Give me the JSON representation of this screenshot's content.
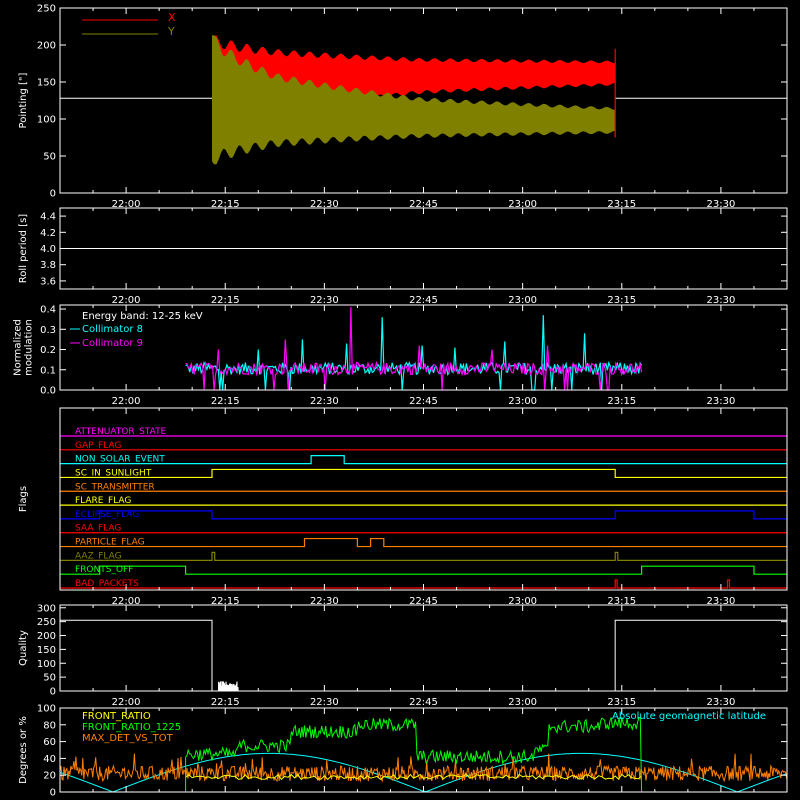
{
  "time_axis": {
    "ticks": [
      "22:00",
      "22:15",
      "22:30",
      "22:45",
      "23:00",
      "23:15",
      "23:30"
    ],
    "start_minutes": 1310,
    "end_minutes": 1420
  },
  "colors": {
    "x": "#ff0000",
    "y": "#808000",
    "white": "#ffffff",
    "cyan": "#00ffff",
    "magenta": "#ff00ff",
    "red": "#ff0000",
    "orange": "#ff8000",
    "yellow": "#ffff00",
    "blue": "#0000ff",
    "green": "#00ff00",
    "olive": "#808000",
    "purple": "#c000c0"
  },
  "chart_data": [
    {
      "id": "pointing",
      "type": "line",
      "ylabel": "Pointing [\"]",
      "ylim": [
        0,
        250
      ],
      "yticks": [
        "0",
        "50",
        "100",
        "150",
        "200",
        "250"
      ],
      "legend": [
        "X",
        "Y"
      ],
      "baseline_value": 128,
      "data_start": "22:13",
      "data_end": "23:14",
      "series": [
        {
          "name": "X",
          "center": [
            128,
            150,
            158,
            162
          ],
          "amplitude": [
            80,
            40,
            22,
            15
          ]
        },
        {
          "name": "Y",
          "center": [
            128,
            112,
            102,
            98
          ],
          "amplitude": [
            85,
            45,
            25,
            16
          ]
        }
      ]
    },
    {
      "id": "roll",
      "type": "line",
      "ylabel": "Roll period [s]",
      "ylim": [
        3.5,
        4.5
      ],
      "yticks": [
        "3.6",
        "3.8",
        "4.0",
        "4.2",
        "4.4"
      ],
      "value": 4.0
    },
    {
      "id": "modulation",
      "type": "line",
      "ylabel_lines": [
        "Normalized",
        "modulation"
      ],
      "ylim": [
        0,
        0.42
      ],
      "yticks": [
        "0.0",
        "0.1",
        "0.2",
        "0.3",
        "0.4"
      ],
      "annotation": "Energy band: 12-25 keV",
      "series": [
        {
          "name": "Collimator 8",
          "typical": 0.1,
          "spikes": [
            0.28,
            0.2,
            0.25,
            0.23,
            0.36,
            0.22,
            0.21,
            0.24,
            0.37,
            0.28
          ]
        },
        {
          "name": "Collimator 9",
          "typical": 0.1,
          "spikes": [
            0.2,
            0.25,
            0.41,
            0.22,
            0.2,
            0.22
          ]
        }
      ],
      "data_start": "22:09",
      "data_end": "23:18"
    },
    {
      "id": "flags",
      "type": "line",
      "ylabel": "Flags",
      "flags": [
        {
          "name": "ATTENUATOR_STATE",
          "color": "#ff00ff",
          "segments": []
        },
        {
          "name": "GAP_FLAG",
          "color": "#ff0000",
          "segments": []
        },
        {
          "name": "NON_SOLAR_EVENT",
          "color": "#00ffff",
          "segments": [
            [
              "22:28",
              "22:33"
            ]
          ]
        },
        {
          "name": "SC_IN_SUNLIGHT",
          "color": "#ffff00",
          "segments": [
            [
              "22:13",
              "23:14"
            ]
          ]
        },
        {
          "name": "SC_TRANSMITTER",
          "color": "#ff8000",
          "segments": []
        },
        {
          "name": "FLARE_FLAG",
          "color": "#ffff00",
          "segments": []
        },
        {
          "name": "ECLIPSE_FLAG",
          "color": "#0000ff",
          "segments": [
            [
              "21:56",
              "22:13"
            ],
            [
              "23:14",
              "23:35"
            ]
          ]
        },
        {
          "name": "SAA_FLAG",
          "color": "#ff0000",
          "segments": []
        },
        {
          "name": "PARTICLE_FLAG",
          "color": "#ff8000",
          "segments": [
            [
              "22:27",
              "22:35"
            ],
            [
              "22:37",
              "22:39"
            ]
          ]
        },
        {
          "name": "AAZ_FLAG",
          "color": "#808000",
          "segments": [
            [
              "22:13",
              "22:13.4"
            ],
            [
              "23:14",
              "23:14.4"
            ]
          ]
        },
        {
          "name": "FRONTS_OFF",
          "color": "#00ff00",
          "segments": [
            [
              "21:56",
              "22:09"
            ],
            [
              "23:18",
              "23:35"
            ]
          ]
        },
        {
          "name": "BAD_PACKETS",
          "color": "#ff0000",
          "segments": [
            [
              "23:14",
              "23:14.3"
            ],
            [
              "23:31",
              "23:31.3"
            ]
          ]
        }
      ]
    },
    {
      "id": "quality",
      "type": "line",
      "ylabel": "Quality",
      "ylim": [
        0,
        310
      ],
      "yticks": [
        "0",
        "50",
        "100",
        "150",
        "200",
        "250",
        "300"
      ],
      "high_value": 255,
      "segments_high": [
        [
          "21:56",
          "22:13"
        ],
        [
          "23:14",
          "23:35"
        ]
      ],
      "burst": [
        "22:14",
        "22:17"
      ]
    },
    {
      "id": "ratios",
      "type": "line",
      "ylabel": "Degrees or %",
      "ylim": [
        0,
        100
      ],
      "yticks": [
        "0",
        "20",
        "40",
        "60",
        "80",
        "100"
      ],
      "series": [
        {
          "name": "FRONT_RATIO",
          "color": "#ffff00"
        },
        {
          "name": "FRONT_RATIO_1225",
          "color": "#00ff00",
          "levels": [
            [
              "22:09",
              "22:17",
              45
            ],
            [
              "22:17",
              "22:25",
              55
            ],
            [
              "22:25",
              "22:35",
              72
            ],
            [
              "22:35",
              "22:44",
              80
            ],
            [
              "22:44",
              "23:02",
              42
            ],
            [
              "23:02",
              "23:04",
              50
            ],
            [
              "23:04",
              "23:12",
              78
            ],
            [
              "23:12",
              "23:18",
              82
            ]
          ]
        },
        {
          "name": "MAX_DET_VS_TOT",
          "color": "#ff8000",
          "typical": 22
        },
        {
          "name": "Absolute geomagnetic latitude",
          "color": "#00ffff"
        }
      ]
    }
  ]
}
